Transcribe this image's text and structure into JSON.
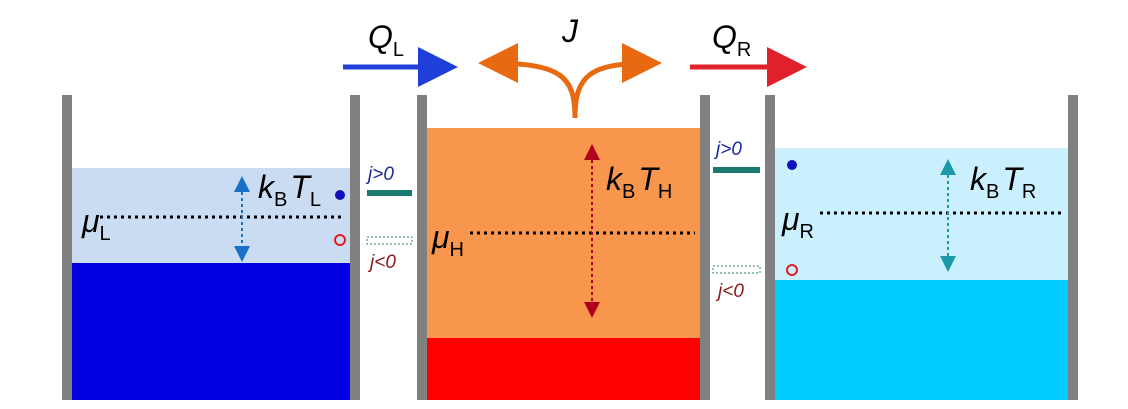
{
  "arrows": {
    "left": [
      {
        "base": "Q",
        "sub": "L"
      }
    ],
    "middle": [
      {
        "base": "J"
      }
    ],
    "right": [
      {
        "base": "Q",
        "sub": "R"
      }
    ]
  },
  "reservoirs": [
    {
      "mu": [
        {
          "base": "μ",
          "sub": "L"
        }
      ],
      "kT": [
        {
          "base": "k",
          "sub": "B"
        },
        {
          "base": "T",
          "sub": "L"
        }
      ]
    },
    {
      "mu": [
        {
          "base": "μ",
          "sub": "H"
        }
      ],
      "kT": [
        {
          "base": "k",
          "sub": "B"
        },
        {
          "base": "T",
          "sub": "H"
        }
      ]
    },
    {
      "mu": [
        {
          "base": "μ",
          "sub": "R"
        }
      ],
      "kT": [
        {
          "base": "k",
          "sub": "B"
        },
        {
          "base": "T",
          "sub": "R"
        }
      ]
    }
  ],
  "junctions": [
    {
      "forward": [
        {
          "base": "j>0"
        }
      ],
      "backward": [
        {
          "base": "j<0"
        }
      ]
    },
    {
      "forward": [
        {
          "base": "j>0"
        }
      ],
      "backward": [
        {
          "base": "j<0"
        }
      ]
    }
  ]
}
